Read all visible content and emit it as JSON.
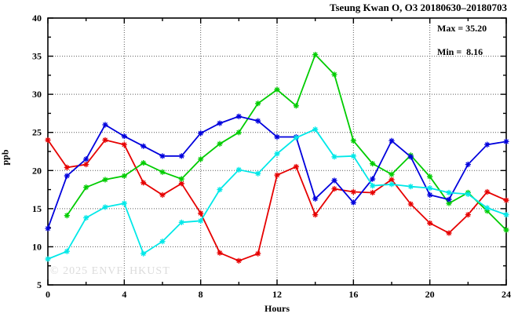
{
  "header": {
    "title": "Tseung Kwan O, O3 20180630–20180703"
  },
  "annotation": {
    "max_label": "Max = 35.20",
    "min_label": "Min =  8.16"
  },
  "watermark": "© 2025 ENVF, HKUST",
  "axis": {
    "ylabel": "ppb",
    "xlabel": "Hours"
  },
  "chart_data": {
    "type": "line",
    "title": "Tseung Kwan O, O3 20180630–20180703",
    "xlabel": "Hours",
    "ylabel": "ppb",
    "xlim": [
      0,
      24
    ],
    "ylim": [
      5,
      40
    ],
    "x_ticks": [
      0,
      4,
      8,
      12,
      16,
      20,
      24
    ],
    "x_minor_ticks": [
      2,
      6,
      10,
      14,
      18,
      22
    ],
    "y_ticks": [
      5,
      10,
      15,
      20,
      25,
      30,
      35,
      40
    ],
    "y_minor_ticks": [
      7.5,
      12.5,
      17.5,
      22.5,
      27.5,
      32.5,
      37.5
    ],
    "grid_x": [
      4,
      8,
      12,
      16,
      20
    ],
    "grid_y": [
      10,
      15,
      20,
      25,
      30,
      35
    ],
    "grid_on": true,
    "legend_position": "none",
    "stat_max": 35.2,
    "stat_min": 8.16,
    "x": [
      0,
      1,
      2,
      3,
      4,
      5,
      6,
      7,
      8,
      9,
      10,
      11,
      12,
      13,
      14,
      15,
      16,
      17,
      18,
      19,
      20,
      21,
      22,
      23,
      24
    ],
    "series": [
      {
        "name": "red",
        "color": "#e60000",
        "values": [
          24.0,
          20.4,
          20.8,
          24.0,
          23.4,
          18.4,
          16.8,
          18.3,
          14.4,
          9.2,
          8.16,
          9.1,
          19.4,
          20.5,
          14.2,
          17.6,
          17.2,
          17.1,
          18.8,
          15.6,
          13.1,
          11.8,
          14.2,
          17.2,
          16.1
        ]
      },
      {
        "name": "green",
        "color": "#00cc00",
        "values": [
          null,
          14.1,
          17.8,
          18.8,
          19.3,
          21.0,
          19.8,
          18.9,
          21.5,
          23.5,
          25.0,
          28.8,
          30.6,
          28.5,
          35.2,
          32.6,
          23.9,
          20.9,
          19.5,
          22.0,
          19.2,
          15.7,
          17.1,
          14.7,
          12.2
        ]
      },
      {
        "name": "blue",
        "color": "#0000dd",
        "values": [
          12.4,
          19.3,
          21.5,
          26.0,
          24.5,
          23.2,
          21.9,
          21.9,
          24.9,
          26.2,
          27.1,
          26.5,
          24.4,
          24.4,
          16.3,
          18.7,
          15.8,
          18.9,
          23.9,
          21.8,
          16.8,
          16.2,
          20.8,
          23.4,
          23.8
        ]
      },
      {
        "name": "cyan",
        "color": "#00e8e8",
        "values": [
          8.4,
          9.4,
          13.8,
          15.2,
          15.7,
          9.1,
          10.7,
          13.2,
          13.4,
          17.5,
          20.1,
          19.6,
          22.2,
          24.3,
          25.4,
          21.8,
          21.9,
          18.0,
          18.2,
          17.9,
          17.7,
          17.1,
          16.9,
          15.1,
          14.2
        ]
      }
    ],
    "colors": {
      "frame": "#000000",
      "grid": "#5a5a5a",
      "background": "#ffffff"
    }
  }
}
